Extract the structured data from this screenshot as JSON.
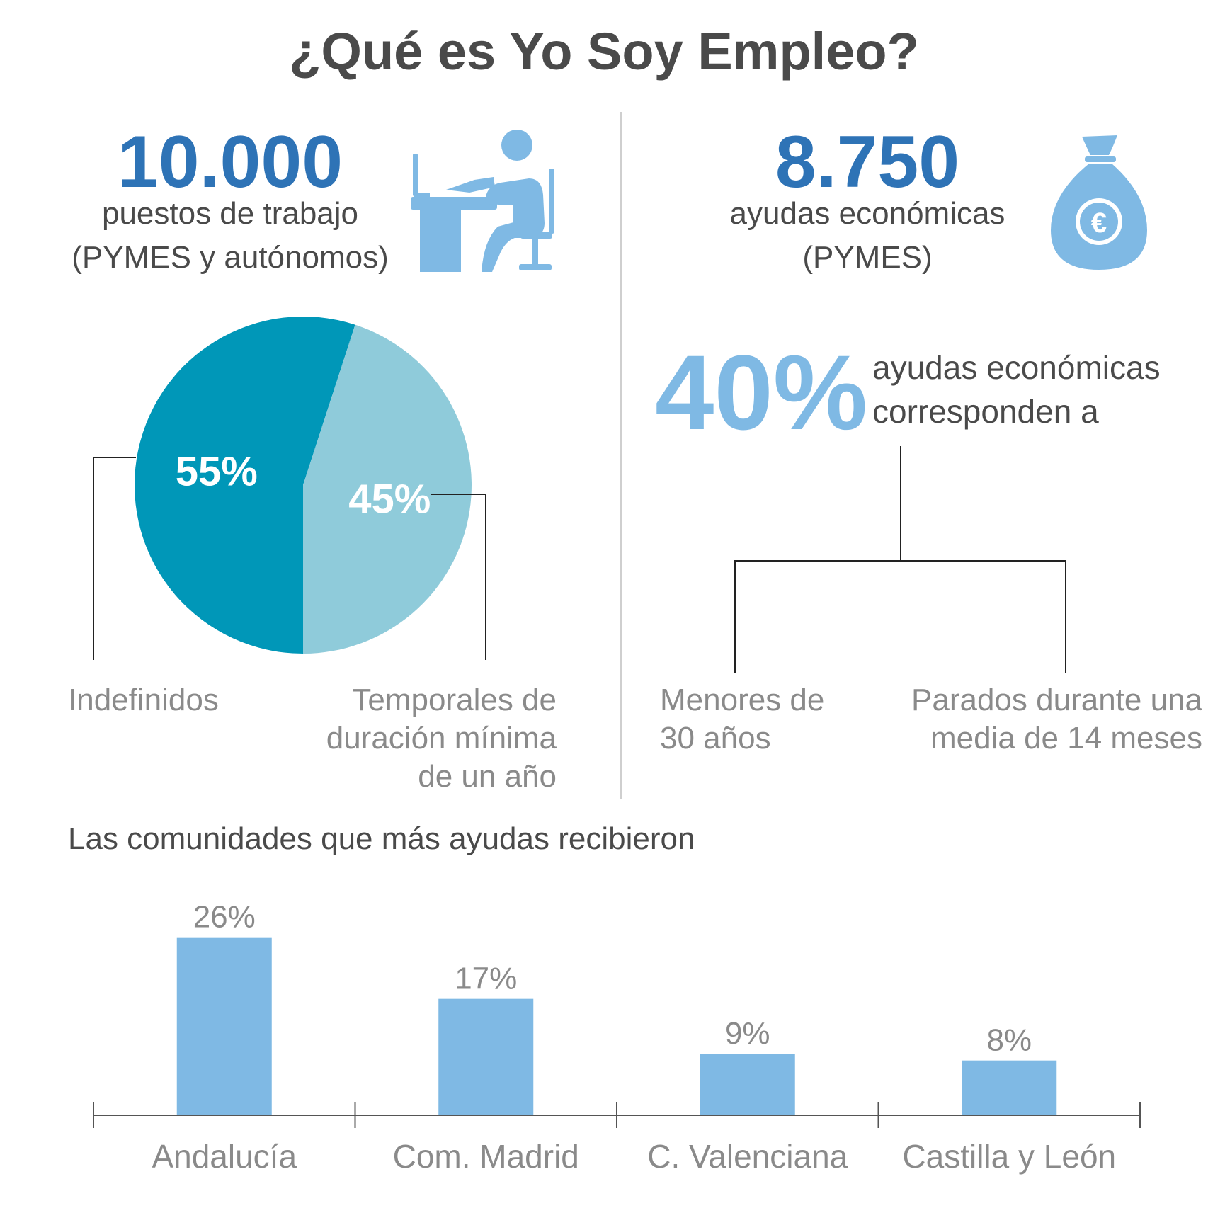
{
  "title": "¿Qué es Yo Soy Empleo?",
  "left_stat": {
    "number": "10.000",
    "line1": "puestos de trabajo",
    "line2": "(PYMES y autónomos)",
    "icon": "office-worker-icon"
  },
  "right_stat": {
    "number": "8.750",
    "line1": "ayudas económicas",
    "line2": "(PYMES)",
    "icon": "money-bag-euro-icon"
  },
  "percent_block": {
    "value": "40%",
    "line1": "ayudas económicas",
    "line2": "corresponden a",
    "branch_left": [
      "Menores de",
      "30 años"
    ],
    "branch_right": [
      "Parados durante una",
      "media de 14 meses"
    ]
  },
  "pie_labels": {
    "left": [
      "Indefinidos"
    ],
    "right": [
      "Temporales de",
      "duración mínima",
      "de un año"
    ]
  },
  "colors": {
    "dark_blue": "#2e73b6",
    "light_blue": "#7fb9e4",
    "pie_dark": "#0097b8",
    "pie_light": "#8fcbda",
    "text_dark": "#4a4a4a",
    "text_gray": "#8a8a8a"
  },
  "chart_data": [
    {
      "type": "pie",
      "slices": [
        {
          "label": "55%",
          "value": 55,
          "category": "Indefinidos",
          "color": "#0097b8"
        },
        {
          "label": "45%",
          "value": 45,
          "category": "Temporales de duración mínima de un año",
          "color": "#8fcbda"
        }
      ]
    },
    {
      "type": "bar",
      "title": "Las comunidades que más ayudas recibieron",
      "categories": [
        "Andalucía",
        "Com. Madrid",
        "C. Valenciana",
        "Castilla y León"
      ],
      "values": [
        26,
        17,
        9,
        8
      ],
      "value_labels": [
        "26%",
        "17%",
        "9%",
        "8%"
      ],
      "ylim": [
        0,
        30
      ],
      "color": "#7fb9e4",
      "grid": false
    }
  ]
}
